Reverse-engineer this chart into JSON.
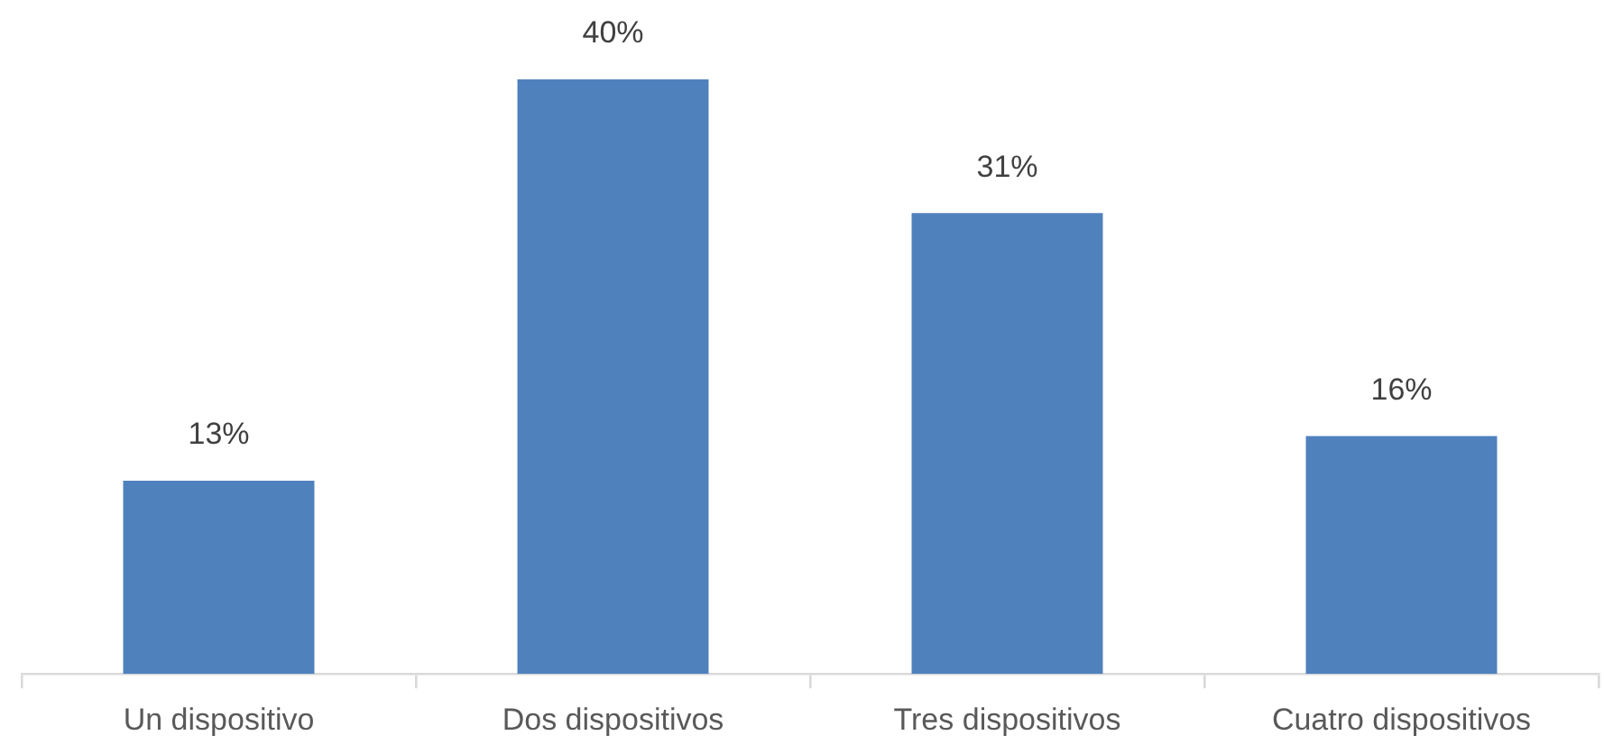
{
  "chart_data": {
    "type": "bar",
    "categories": [
      "Un dispositivo",
      "Dos dispositivos",
      "Tres dispositivos",
      "Cuatro dispositivos"
    ],
    "values": [
      13,
      40,
      31,
      16
    ],
    "value_labels": [
      "13%",
      "40%",
      "31%",
      "16%"
    ],
    "color": "#4f81bd",
    "grid": false,
    "legend": false,
    "tick_labels": "x"
  }
}
